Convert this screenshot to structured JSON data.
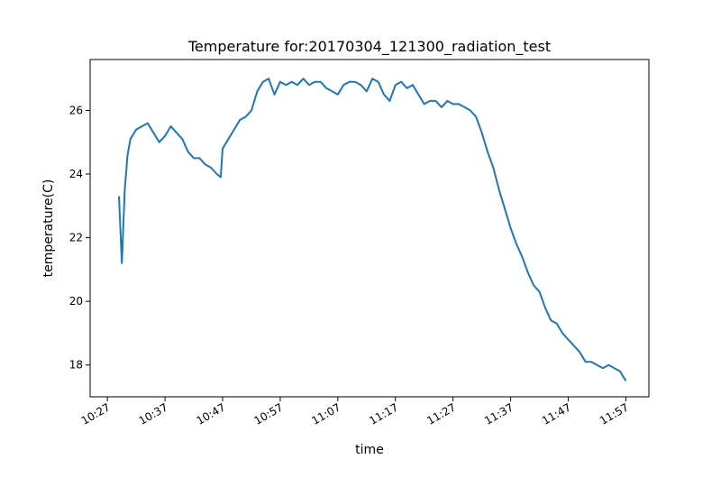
{
  "chart_data": {
    "type": "line",
    "title": "Temperature for:20170304_121300_radiation_test",
    "xlabel": "time",
    "ylabel": "temperature(C)",
    "grid": false,
    "legend": "none",
    "line_color": "#1f77b4",
    "x_unit": "clock time (HH:MM)",
    "xlim": [
      "10:24",
      "12:01"
    ],
    "ylim": [
      17.0,
      27.6
    ],
    "x_ticks": [
      "10:27",
      "10:37",
      "10:47",
      "10:57",
      "11:07",
      "11:17",
      "11:27",
      "11:37",
      "11:47",
      "11:57"
    ],
    "y_ticks": [
      18,
      20,
      22,
      24,
      26
    ],
    "series": [
      {
        "x": [
          "10:29",
          "10:29:30",
          "10:30",
          "10:30:30",
          "10:31",
          "10:32",
          "10:33",
          "10:34",
          "10:35",
          "10:36",
          "10:37",
          "10:38",
          "10:39",
          "10:40",
          "10:41",
          "10:42",
          "10:43",
          "10:44",
          "10:45",
          "10:46",
          "10:46:40",
          "10:47",
          "10:48",
          "10:49",
          "10:50",
          "10:51",
          "10:52",
          "10:53",
          "10:54",
          "10:55",
          "10:56",
          "10:57",
          "10:58",
          "10:59",
          "11:00",
          "11:01",
          "11:02",
          "11:03",
          "11:04",
          "11:05",
          "11:06",
          "11:07",
          "11:08",
          "11:09",
          "11:10",
          "11:11",
          "11:12",
          "11:13",
          "11:14",
          "11:15",
          "11:16",
          "11:17",
          "11:18",
          "11:19",
          "11:20",
          "11:21",
          "11:22",
          "11:23",
          "11:24",
          "11:25",
          "11:26",
          "11:27",
          "11:28",
          "11:29",
          "11:30",
          "11:31",
          "11:32",
          "11:33",
          "11:34",
          "11:35",
          "11:36",
          "11:37",
          "11:38",
          "11:39",
          "11:40",
          "11:41",
          "11:42",
          "11:43",
          "11:44",
          "11:45",
          "11:46",
          "11:47",
          "11:48",
          "11:49",
          "11:50",
          "11:51",
          "11:52",
          "11:53",
          "11:54",
          "11:55",
          "11:56",
          "11:57"
        ],
        "y": [
          23.3,
          21.2,
          23.5,
          24.6,
          25.1,
          25.4,
          25.5,
          25.6,
          25.3,
          25.0,
          25.2,
          25.5,
          25.3,
          25.1,
          24.7,
          24.5,
          24.5,
          24.3,
          24.2,
          24.0,
          23.9,
          24.8,
          25.1,
          25.4,
          25.7,
          25.8,
          26.0,
          26.6,
          26.9,
          27.0,
          26.5,
          26.9,
          26.8,
          26.9,
          26.8,
          27.0,
          26.8,
          26.9,
          26.9,
          26.7,
          26.6,
          26.5,
          26.8,
          26.9,
          26.9,
          26.8,
          26.6,
          27.0,
          26.9,
          26.5,
          26.3,
          26.8,
          26.9,
          26.7,
          26.8,
          26.5,
          26.2,
          26.3,
          26.3,
          26.1,
          26.3,
          26.2,
          26.2,
          26.1,
          26.0,
          25.8,
          25.3,
          24.7,
          24.2,
          23.5,
          22.9,
          22.3,
          21.8,
          21.4,
          20.9,
          20.5,
          20.3,
          19.8,
          19.4,
          19.3,
          19.0,
          18.8,
          18.6,
          18.4,
          18.1,
          18.1,
          18.0,
          17.9,
          18.0,
          17.9,
          17.8,
          17.5
        ]
      }
    ]
  }
}
